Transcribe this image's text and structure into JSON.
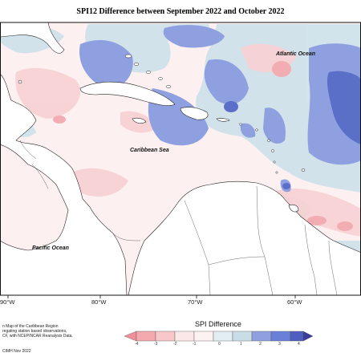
{
  "title": "SPI12 Difference between September 2022 and October 2022",
  "labels": {
    "atlantic": "Atlantic Ocean",
    "caribbean": "Caribbean Sea",
    "pacific": "Pacific Ocean"
  },
  "longitude_ticks": [
    "90°W",
    "80°W",
    "70°W",
    "60°W"
  ],
  "legend": {
    "title": "SPI Difference",
    "ticks": [
      "-4",
      "-3",
      "-2",
      "-1",
      "0",
      "1",
      "2",
      "3",
      "4"
    ],
    "colors": [
      "#f08f98",
      "#f5b5b9",
      "#f8d2d4",
      "#fbe7e7",
      "#e7f0f2",
      "#c9dde6",
      "#8f9fe0",
      "#6a7fd8",
      "#4a4ab0"
    ]
  },
  "notes": {
    "line1": "n Map of the Caribbean Region",
    "line2": "regating station based observations,",
    "line3": "CF, with NCEP/NCAR Reanalysis Data.",
    "credit": "CIMH Nov 2022"
  }
}
